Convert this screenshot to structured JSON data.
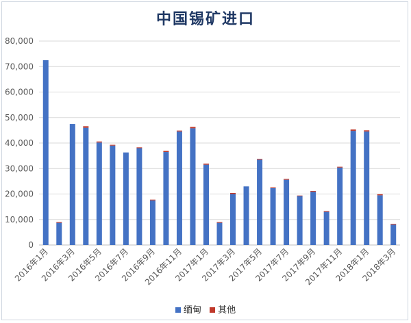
{
  "chart_data": {
    "type": "bar",
    "stacked": true,
    "title": "中国锡矿进口",
    "xlabel": "",
    "ylabel": "",
    "ylim": [
      0,
      80000
    ],
    "yticks": [
      0,
      10000,
      20000,
      30000,
      40000,
      50000,
      60000,
      70000,
      80000
    ],
    "ytick_labels": [
      "0",
      "10,000",
      "20,000",
      "30,000",
      "40,000",
      "50,000",
      "60,000",
      "70,000",
      "80,000"
    ],
    "grid": true,
    "legend_position": "bottom",
    "categories": [
      "2016年1月",
      "2016年2月",
      "2016年3月",
      "2016年4月",
      "2016年5月",
      "2016年6月",
      "2016年7月",
      "2016年8月",
      "2016年9月",
      "2016年10月",
      "2016年11月",
      "2016年12月",
      "2017年1月",
      "2017年2月",
      "2017年3月",
      "2017年4月",
      "2017年5月",
      "2017年6月",
      "2017年7月",
      "2017年8月",
      "2017年9月",
      "2017年10月",
      "2017年11月",
      "2017年12月",
      "2018年1月",
      "2018年2月",
      "2018年3月"
    ],
    "xtick_labels": [
      "2016年1月",
      "",
      "2016年3月",
      "",
      "2016年5月",
      "",
      "2016年7月",
      "",
      "2016年9月",
      "",
      "2016年11月",
      "",
      "2017年1月",
      "",
      "2017年3月",
      "",
      "2017年5月",
      "",
      "2017年7月",
      "",
      "2017年9月",
      "",
      "2017年11月",
      "",
      "2018年1月",
      "",
      "2018年3月"
    ],
    "series": [
      {
        "name": "缅甸",
        "color": "#4472c4",
        "values": [
          72500,
          8700,
          47500,
          46000,
          40200,
          39000,
          36300,
          38000,
          17500,
          36500,
          44500,
          45800,
          31500,
          8700,
          20000,
          23000,
          33500,
          22300,
          25600,
          19200,
          20900,
          13000,
          30400,
          44800,
          44500,
          19500,
          8000
        ]
      },
      {
        "name": "其他",
        "color": "#c0392b",
        "values": [
          0,
          300,
          0,
          600,
          400,
          300,
          0,
          300,
          300,
          400,
          400,
          500,
          400,
          300,
          400,
          0,
          300,
          300,
          300,
          200,
          300,
          300,
          300,
          500,
          500,
          400,
          300
        ]
      }
    ]
  }
}
